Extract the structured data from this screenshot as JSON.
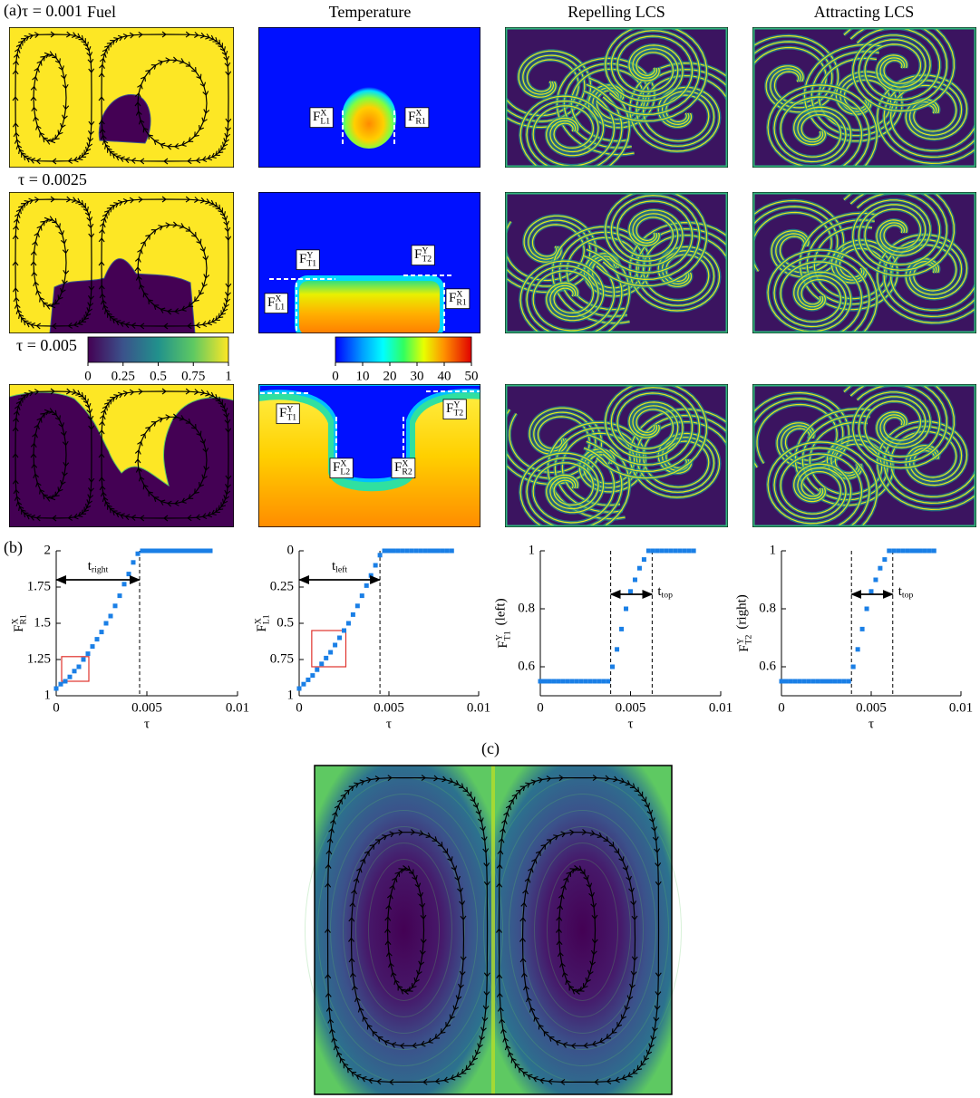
{
  "panel_labels": [
    "(a)",
    "(b)",
    "(c)"
  ],
  "column_titles": [
    "Fuel",
    "Temperature",
    "Repelling LCS",
    "Attracting LCS"
  ],
  "row_labels": [
    "τ = 0.001",
    "τ = 0.0025",
    "τ = 0.005"
  ],
  "colorbars": [
    {
      "lim": [
        0,
        1
      ],
      "ticks": [
        0,
        0.25,
        0.5,
        0.75,
        1
      ]
    },
    {
      "lim": [
        0,
        50
      ],
      "ticks": [
        0,
        10,
        20,
        30,
        40,
        50
      ]
    }
  ],
  "front_labels": [
    [
      {
        "base": "F",
        "sup": "X",
        "sub": "L1"
      },
      {
        "base": "F",
        "sup": "X",
        "sub": "R1"
      }
    ],
    [
      {
        "base": "F",
        "sup": "Y",
        "sub": "T1"
      },
      {
        "base": "F",
        "sup": "Y",
        "sub": "T2"
      },
      {
        "base": "F",
        "sup": "X",
        "sub": "L1"
      },
      {
        "base": "F",
        "sup": "X",
        "sub": "R1"
      }
    ],
    [
      {
        "base": "F",
        "sup": "Y",
        "sub": "T1"
      },
      {
        "base": "F",
        "sup": "Y",
        "sub": "T2"
      },
      {
        "base": "F",
        "sup": "X",
        "sub": "L2"
      },
      {
        "base": "F",
        "sup": "X",
        "sub": "R2"
      }
    ]
  ],
  "chart_data": [
    {
      "type": "scatter",
      "color": "#1a7fe6",
      "x": [
        0,
        0.00025,
        0.0005,
        0.00075,
        0.001,
        0.00125,
        0.0015,
        0.00175,
        0.002,
        0.00225,
        0.0025,
        0.00275,
        0.003,
        0.00325,
        0.0035,
        0.00375,
        0.004,
        0.00425,
        0.0045,
        0.00475,
        0.005,
        0.00525,
        0.0055,
        0.00575,
        0.006,
        0.00625,
        0.0065,
        0.00675,
        0.007,
        0.00725,
        0.0075,
        0.00775,
        0.008,
        0.00825,
        0.0085
      ],
      "values": [
        1.05,
        1.08,
        1.1,
        1.13,
        1.17,
        1.2,
        1.25,
        1.29,
        1.34,
        1.39,
        1.44,
        1.5,
        1.55,
        1.62,
        1.69,
        1.77,
        1.84,
        1.92,
        1.98,
        2,
        2,
        2,
        2,
        2,
        2,
        2,
        2,
        2,
        2,
        2,
        2,
        2,
        2,
        2,
        2
      ],
      "xlim": [
        0,
        0.01
      ],
      "xticks": [
        0,
        0.005,
        0.01
      ],
      "ylim": [
        1,
        2
      ],
      "yticks": [
        1,
        1.25,
        1.5,
        1.75,
        2
      ],
      "xlabel": "τ",
      "ylabel": {
        "base": "F",
        "sup": "X",
        "sub": "R1"
      },
      "vlines": [
        0.0046
      ],
      "arrow": {
        "y": 1.8,
        "x": [
          0,
          0.0046
        ],
        "label": {
          "base": "t",
          "sub": "right"
        }
      },
      "box": {
        "x": [
          0.0003,
          0.0018
        ],
        "y": [
          1.1,
          1.27
        ],
        "color": "#e0322c"
      }
    },
    {
      "type": "scatter",
      "color": "#1a7fe6",
      "x": [
        0,
        0.00025,
        0.0005,
        0.00075,
        0.001,
        0.00125,
        0.0015,
        0.00175,
        0.002,
        0.00225,
        0.0025,
        0.00275,
        0.003,
        0.00325,
        0.0035,
        0.00375,
        0.004,
        0.00425,
        0.0045,
        0.00475,
        0.005,
        0.00525,
        0.0055,
        0.00575,
        0.006,
        0.00625,
        0.0065,
        0.00675,
        0.007,
        0.00725,
        0.0075,
        0.00775,
        0.008,
        0.00825,
        0.0085
      ],
      "values": [
        0.95,
        0.92,
        0.89,
        0.86,
        0.82,
        0.78,
        0.74,
        0.7,
        0.65,
        0.6,
        0.55,
        0.5,
        0.44,
        0.38,
        0.31,
        0.24,
        0.17,
        0.1,
        0.03,
        0,
        0,
        0,
        0,
        0,
        0,
        0,
        0,
        0,
        0,
        0,
        0,
        0,
        0,
        0,
        0
      ],
      "xlim": [
        0,
        0.01
      ],
      "xticks": [
        0,
        0.005,
        0.01
      ],
      "ylim": [
        1,
        0
      ],
      "yticks": [
        0,
        0.25,
        0.5,
        0.75,
        1
      ],
      "xlabel": "τ",
      "ylabel": {
        "base": "F",
        "sup": "X",
        "sub": "L1"
      },
      "vlines": [
        0.0045
      ],
      "arrow": {
        "y": 0.2,
        "x": [
          0,
          0.0045
        ],
        "label": {
          "base": "t",
          "sub": "left"
        }
      },
      "box": {
        "x": [
          0.0007,
          0.0026
        ],
        "y": [
          0.8,
          0.55
        ],
        "color": "#e0322c"
      }
    },
    {
      "type": "scatter",
      "color": "#1a7fe6",
      "x": [
        0,
        0.00025,
        0.0005,
        0.00075,
        0.001,
        0.00125,
        0.0015,
        0.00175,
        0.002,
        0.00225,
        0.0025,
        0.00275,
        0.003,
        0.00325,
        0.0035,
        0.00375,
        0.004,
        0.00425,
        0.0045,
        0.00475,
        0.005,
        0.00525,
        0.0055,
        0.00575,
        0.006,
        0.00625,
        0.0065,
        0.00675,
        0.007,
        0.00725,
        0.0075,
        0.00775,
        0.008,
        0.00825,
        0.0085
      ],
      "values": [
        0.55,
        0.55,
        0.55,
        0.55,
        0.55,
        0.55,
        0.55,
        0.55,
        0.55,
        0.55,
        0.55,
        0.55,
        0.55,
        0.55,
        0.55,
        0.55,
        0.6,
        0.66,
        0.73,
        0.8,
        0.86,
        0.9,
        0.94,
        0.97,
        1,
        1,
        1,
        1,
        1,
        1,
        1,
        1,
        1,
        1,
        1
      ],
      "xlim": [
        0,
        0.01
      ],
      "xticks": [
        0,
        0.005,
        0.01
      ],
      "ylim": [
        0.5,
        1
      ],
      "yticks": [
        0.6,
        0.8,
        1
      ],
      "xlabel": "τ",
      "ylabel": {
        "base": "F",
        "sup": "Y",
        "sub": "T1",
        "suffix": "(left)"
      },
      "vlines": [
        0.0039,
        0.0062
      ],
      "arrow": {
        "y": 0.85,
        "x": [
          0.0039,
          0.0062
        ],
        "label": {
          "base": "t",
          "sub": "top"
        }
      }
    },
    {
      "type": "scatter",
      "color": "#1a7fe6",
      "x": [
        0,
        0.00025,
        0.0005,
        0.00075,
        0.001,
        0.00125,
        0.0015,
        0.00175,
        0.002,
        0.00225,
        0.0025,
        0.00275,
        0.003,
        0.00325,
        0.0035,
        0.00375,
        0.004,
        0.00425,
        0.0045,
        0.00475,
        0.005,
        0.00525,
        0.0055,
        0.00575,
        0.006,
        0.00625,
        0.0065,
        0.00675,
        0.007,
        0.00725,
        0.0075,
        0.00775,
        0.008,
        0.00825,
        0.0085
      ],
      "values": [
        0.55,
        0.55,
        0.55,
        0.55,
        0.55,
        0.55,
        0.55,
        0.55,
        0.55,
        0.55,
        0.55,
        0.55,
        0.55,
        0.55,
        0.55,
        0.55,
        0.6,
        0.66,
        0.73,
        0.8,
        0.86,
        0.9,
        0.94,
        0.97,
        1,
        1,
        1,
        1,
        1,
        1,
        1,
        1,
        1,
        1,
        1
      ],
      "xlim": [
        0,
        0.01
      ],
      "xticks": [
        0,
        0.005,
        0.01
      ],
      "ylim": [
        0.5,
        1
      ],
      "yticks": [
        0.6,
        0.8,
        1
      ],
      "xlabel": "τ",
      "ylabel": {
        "base": "F",
        "sup": "Y",
        "sub": "T2",
        "suffix": "(right)"
      },
      "vlines": [
        0.0039,
        0.0062
      ],
      "arrow": {
        "y": 0.85,
        "x": [
          0.0039,
          0.0062
        ],
        "label": {
          "base": "t",
          "sub": "top"
        }
      }
    }
  ]
}
